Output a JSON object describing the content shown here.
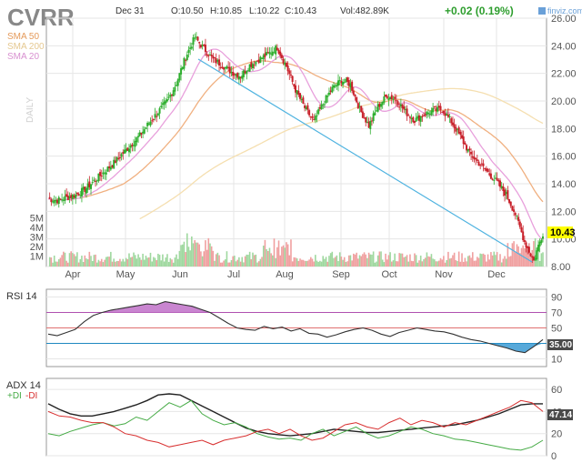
{
  "header": {
    "ticker": "CVRR",
    "date": "Dec 31",
    "open": "O:10.50",
    "high": "H:10.85",
    "low": "L:10.22",
    "close": "C:10.43",
    "volume": "Vol:482.89K",
    "change": "+0.02 (0.19%)",
    "brand": "finviz.com"
  },
  "legend": {
    "sma50": "SMA 50",
    "sma200": "SMA 200",
    "sma20": "SMA 20",
    "timeframe": "DAILY"
  },
  "colors": {
    "up": "#2eae2e",
    "down": "#c8202a",
    "sma20": "#e8a0dc",
    "sma50": "#f0b080",
    "sma200": "#f5dfb0",
    "trendline": "#4fb3e0",
    "rsi": "#333333",
    "rsi_over": "#b050b0",
    "rsi_under": "#1e88c0",
    "adx": "#222222",
    "plus_di": "#44aa44",
    "minus_di": "#d83030",
    "price_badge": "#ffff00"
  },
  "chart_data": [
    {
      "type": "candlestick",
      "title": "CVRR",
      "x": [
        "Apr",
        "May",
        "Jun",
        "Jul",
        "Aug",
        "Sep",
        "Oct",
        "Nov",
        "Dec"
      ],
      "ylim": [
        8,
        26
      ],
      "yticks": [
        "26.00",
        "24.00",
        "22.00",
        "20.00",
        "18.00",
        "16.00",
        "14.00",
        "12.00",
        "10.00",
        "8.00"
      ],
      "last_price": "10.43",
      "close_path": [
        [
          0,
          12.9
        ],
        [
          6,
          12.8
        ],
        [
          12,
          13.0
        ],
        [
          18,
          13.2
        ],
        [
          24,
          13.6
        ],
        [
          30,
          14.2
        ],
        [
          36,
          14.8
        ],
        [
          42,
          15.4
        ],
        [
          48,
          16.1
        ],
        [
          54,
          16.8
        ],
        [
          60,
          17.5
        ],
        [
          66,
          18.4
        ],
        [
          72,
          19.2
        ],
        [
          78,
          20.0
        ],
        [
          84,
          21.3
        ],
        [
          90,
          23.2
        ],
        [
          96,
          24.6
        ],
        [
          102,
          23.8
        ],
        [
          108,
          23.0
        ],
        [
          114,
          22.6
        ],
        [
          120,
          22.1
        ],
        [
          126,
          21.8
        ],
        [
          132,
          22.6
        ],
        [
          138,
          23.0
        ],
        [
          144,
          23.4
        ],
        [
          150,
          23.9
        ],
        [
          156,
          22.5
        ],
        [
          162,
          20.8
        ],
        [
          168,
          19.5
        ],
        [
          174,
          18.5
        ],
        [
          180,
          19.8
        ],
        [
          186,
          20.9
        ],
        [
          192,
          21.5
        ],
        [
          198,
          21.2
        ],
        [
          204,
          19.4
        ],
        [
          210,
          18.2
        ],
        [
          216,
          19.6
        ],
        [
          222,
          20.4
        ],
        [
          228,
          20.1
        ],
        [
          234,
          19.2
        ],
        [
          240,
          18.6
        ],
        [
          246,
          19.0
        ],
        [
          252,
          19.3
        ],
        [
          258,
          19.4
        ],
        [
          264,
          18.5
        ],
        [
          270,
          17.4
        ],
        [
          276,
          16.2
        ],
        [
          282,
          15.5
        ],
        [
          288,
          14.8
        ],
        [
          294,
          14.1
        ],
        [
          300,
          13.2
        ],
        [
          306,
          11.8
        ],
        [
          312,
          9.8
        ],
        [
          318,
          8.4
        ],
        [
          321,
          9.5
        ],
        [
          324,
          10.43
        ]
      ],
      "volume_ticks": [
        "5M",
        "4M",
        "3M",
        "2M",
        "1M"
      ],
      "indicators": [
        "SMA 20",
        "SMA 50",
        "SMA 200"
      ]
    },
    {
      "type": "line",
      "title": "RSI 14",
      "ylim": [
        0,
        100
      ],
      "yticks": [
        "90",
        "70",
        "50",
        "30",
        "10"
      ],
      "last_value": "35.00",
      "levels": [
        70,
        50,
        30
      ],
      "values": [
        42,
        40,
        44,
        48,
        58,
        66,
        70,
        73,
        75,
        77,
        79,
        81,
        80,
        84,
        82,
        80,
        78,
        74,
        70,
        63,
        56,
        50,
        48,
        47,
        52,
        49,
        51,
        46,
        49,
        43,
        42,
        38,
        41,
        45,
        48,
        50,
        47,
        42,
        39,
        44,
        47,
        50,
        48,
        46,
        45,
        42,
        38,
        35,
        33,
        30,
        27,
        24,
        20,
        18,
        26,
        35
      ]
    },
    {
      "type": "line",
      "title": "ADX 14",
      "subtitle_plus": "+DI",
      "subtitle_minus": "-DI",
      "ylim": [
        0,
        70
      ],
      "yticks": [
        "60",
        "40",
        "20",
        "0"
      ],
      "last_value": "47.14",
      "series": [
        {
          "name": "ADX 14",
          "values": [
            47,
            42,
            38,
            36,
            36,
            38,
            40,
            43,
            46,
            50,
            55,
            56,
            55,
            50,
            45,
            40,
            35,
            30,
            25,
            22,
            20,
            19,
            18,
            19,
            20,
            22,
            24,
            23,
            22,
            21,
            21,
            22,
            23,
            24,
            25,
            26,
            27,
            28,
            30,
            32,
            35,
            38,
            42,
            46,
            47,
            47
          ]
        },
        {
          "name": "+DI",
          "values": [
            20,
            18,
            22,
            25,
            28,
            30,
            27,
            29,
            35,
            32,
            40,
            48,
            44,
            50,
            38,
            32,
            28,
            30,
            26,
            20,
            17,
            15,
            16,
            14,
            20,
            24,
            18,
            22,
            26,
            20,
            16,
            18,
            22,
            26,
            24,
            20,
            18,
            15,
            14,
            12,
            10,
            8,
            6,
            5,
            8,
            14
          ]
        },
        {
          "name": "-DI",
          "values": [
            40,
            36,
            35,
            32,
            30,
            30,
            26,
            20,
            18,
            14,
            12,
            8,
            10,
            12,
            14,
            10,
            14,
            16,
            18,
            22,
            24,
            20,
            24,
            18,
            14,
            16,
            22,
            28,
            30,
            26,
            24,
            30,
            34,
            28,
            32,
            30,
            26,
            30,
            28,
            32,
            36,
            40,
            44,
            50,
            48,
            40
          ]
        }
      ]
    }
  ]
}
